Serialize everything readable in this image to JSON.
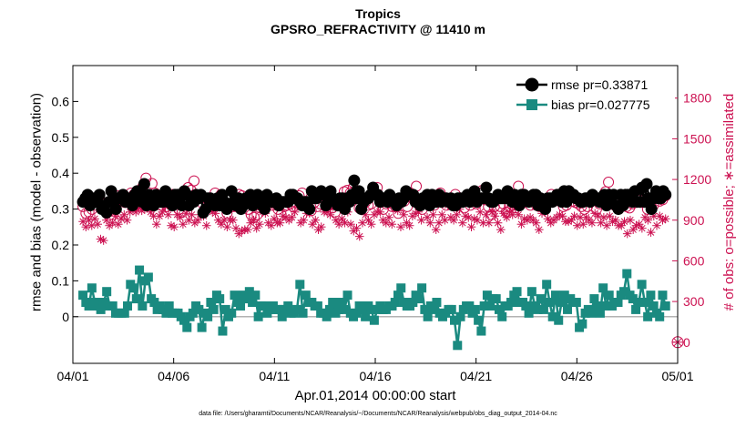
{
  "chart_data": {
    "type": "line",
    "title": "Tropics",
    "subtitle": "GPSRO_REFRACTIVITY @ 11410 m",
    "xlabel": "Apr.01,2014 00:00:00 start",
    "ylabel_left": "rmse and bias (model - observation)",
    "ylabel_right": "# of obs: o=possible; ∗=assimilated",
    "footnote": "data file: /Users/gharamti/Documents/NCAR/Reanalysis/~/Documents/NCAR/Reanalysis/webpub/obs_diag_output_2014-04.nc",
    "x_ticks": [
      "04/01",
      "04/06",
      "04/11",
      "04/16",
      "04/21",
      "04/26",
      "05/01"
    ],
    "x_range_days": [
      0,
      30
    ],
    "y_left_ticks": [
      "0",
      "0.1",
      "0.2",
      "0.3",
      "0.4",
      "0.5",
      "0.6"
    ],
    "y_left_range": [
      -0.13,
      0.7
    ],
    "y_right_ticks": [
      "0",
      "300",
      "600",
      "900",
      "1200",
      "1500",
      "1800"
    ],
    "y_right_range": [
      -156,
      2040
    ],
    "legend_position": "top-right",
    "colors": {
      "rmse": "#000000",
      "bias": "#1a8a80",
      "obs": "#cc1151",
      "zero": "#b3b3b3"
    },
    "series": [
      {
        "name": "rmse pr=0.33871",
        "key": "rmse",
        "marker": "filled-circle",
        "values": [
          0.32,
          0.33,
          0.34,
          0.31,
          0.33,
          0.32,
          0.33,
          0.34,
          0.3,
          0.31,
          0.29,
          0.32,
          0.35,
          0.32,
          0.3,
          0.33,
          0.33,
          0.34,
          0.32,
          0.33,
          0.32,
          0.31,
          0.34,
          0.35,
          0.33,
          0.32,
          0.37,
          0.31,
          0.34,
          0.33,
          0.31,
          0.34,
          0.33,
          0.32,
          0.32,
          0.35,
          0.32,
          0.33,
          0.31,
          0.34,
          0.34,
          0.33,
          0.31,
          0.35,
          0.34,
          0.31,
          0.32,
          0.32,
          0.34,
          0.33,
          0.34,
          0.29,
          0.3,
          0.33,
          0.33,
          0.32,
          0.31,
          0.33,
          0.31,
          0.34,
          0.32,
          0.3,
          0.31,
          0.35,
          0.32,
          0.31,
          0.33,
          0.3,
          0.31,
          0.33,
          0.32,
          0.34,
          0.31,
          0.33,
          0.34,
          0.33,
          0.31,
          0.3,
          0.34,
          0.33,
          0.32,
          0.32,
          0.33,
          0.31,
          0.32,
          0.32,
          0.32,
          0.32,
          0.34,
          0.34,
          0.33,
          0.33,
          0.32,
          0.31,
          0.32,
          0.32,
          0.3,
          0.35,
          0.33,
          0.33,
          0.34,
          0.35,
          0.34,
          0.31,
          0.33,
          0.35,
          0.33,
          0.32,
          0.31,
          0.33,
          0.33,
          0.3,
          0.33,
          0.32,
          0.34,
          0.38,
          0.33,
          0.35,
          0.3,
          0.32,
          0.33,
          0.33,
          0.34,
          0.36,
          0.34,
          0.34,
          0.32,
          0.33,
          0.33,
          0.32,
          0.34,
          0.33,
          0.32,
          0.31,
          0.33,
          0.32,
          0.33,
          0.35,
          0.34,
          0.34,
          0.34,
          0.32,
          0.32,
          0.31,
          0.33,
          0.32,
          0.34,
          0.31,
          0.34,
          0.32,
          0.32,
          0.34,
          0.32,
          0.33,
          0.33,
          0.32,
          0.33,
          0.31,
          0.31,
          0.33,
          0.33,
          0.32,
          0.33,
          0.34,
          0.32,
          0.33,
          0.35,
          0.32,
          0.33,
          0.33,
          0.33,
          0.36,
          0.33,
          0.32,
          0.32,
          0.33,
          0.34,
          0.33,
          0.33,
          0.33,
          0.35,
          0.34,
          0.32,
          0.34,
          0.33,
          0.31,
          0.34,
          0.34,
          0.33,
          0.32,
          0.33,
          0.34,
          0.34,
          0.31,
          0.33,
          0.31,
          0.3,
          0.33,
          0.33,
          0.32,
          0.33,
          0.34,
          0.33,
          0.32,
          0.35,
          0.32,
          0.35,
          0.34,
          0.34,
          0.33,
          0.33,
          0.32,
          0.32,
          0.33,
          0.33,
          0.32,
          0.34,
          0.33,
          0.33,
          0.32,
          0.32,
          0.34,
          0.31,
          0.34,
          0.32,
          0.34,
          0.31,
          0.3,
          0.34,
          0.31,
          0.34,
          0.34,
          0.33,
          0.32,
          0.35,
          0.32,
          0.32,
          0.36,
          0.32,
          0.37,
          0.33,
          0.3,
          0.33,
          0.35,
          0.33,
          0.33,
          0.35,
          0.34
        ]
      },
      {
        "name": "bias pr=0.027775",
        "key": "bias",
        "marker": "filled-square",
        "values": [
          0.06,
          0.04,
          0.03,
          0.08,
          0.04,
          0.03,
          0.02,
          0.04,
          0.07,
          0.03,
          0.03,
          0.01,
          0.01,
          0.01,
          0.01,
          0.03,
          0.09,
          0.08,
          0.05,
          0.13,
          0.03,
          0.1,
          0.11,
          0.05,
          0.04,
          0.02,
          0.03,
          0.02,
          0.01,
          0.03,
          0.01,
          0.01,
          0.01,
          0.0,
          -0.01,
          -0.03,
          0.0,
          0.01,
          0.03,
          0.02,
          -0.03,
          0.01,
          0.0,
          0.04,
          0.02,
          0.06,
          0.05,
          -0.04,
          0.02,
          0.0,
          0.01,
          0.06,
          0.04,
          0.03,
          0.06,
          0.05,
          0.07,
          0.04,
          0.06,
          0.0,
          0.03,
          0.03,
          0.01,
          0.02,
          0.03,
          0.02,
          0.02,
          0.0,
          0.02,
          0.03,
          0.01,
          0.01,
          0.02,
          0.09,
          0.01,
          0.06,
          0.04,
          0.04,
          0.03,
          0.03,
          0.01,
          0.01,
          0.0,
          0.02,
          0.04,
          0.01,
          0.02,
          0.04,
          0.02,
          0.06,
          0.01,
          0.0,
          0.01,
          0.03,
          0.02,
          0.0,
          0.03,
          0.02,
          -0.01,
          0.02,
          0.03,
          0.02,
          0.02,
          0.03,
          0.03,
          0.04,
          0.06,
          0.08,
          0.04,
          0.03,
          0.03,
          0.04,
          0.06,
          0.05,
          0.08,
          0.02,
          0.0,
          0.03,
          0.02,
          0.04,
          0.01,
          0.0,
          0.01,
          0.02,
          0.02,
          -0.01,
          -0.08,
          0.0,
          0.02,
          0.03,
          0.03,
          0.01,
          0.02,
          -0.01,
          -0.04,
          0.03,
          0.06,
          0.03,
          0.05,
          0.05,
          0.02,
          0.0,
          0.03,
          0.03,
          0.04,
          0.06,
          0.07,
          0.04,
          0.04,
          0.03,
          0.01,
          0.07,
          0.03,
          0.02,
          0.05,
          0.02,
          0.09,
          0.04,
          0.0,
          0.06,
          -0.01,
          0.04,
          0.06,
          0.02,
          0.05,
          0.04,
          0.04,
          -0.03,
          -0.02,
          0.01,
          0.02,
          0.01,
          0.05,
          0.03,
          0.01,
          0.08,
          0.03,
          0.06,
          0.03,
          0.04,
          0.04,
          0.06,
          0.07,
          0.12,
          0.06,
          0.05,
          0.02,
          0.04,
          0.09,
          0.04,
          0.0,
          0.06,
          0.03,
          0.01,
          0.0,
          0.06,
          0.03
        ]
      },
      {
        "name": "possible",
        "key": "obs_possible",
        "marker": "open-circle",
        "values": [
          1000,
          950,
          960,
          980,
          1010,
          1030,
          1040,
          1020,
          1000,
          970,
          940,
          990,
          1080,
          1050,
          1030,
          1060,
          1100,
          1090,
          1040,
          1020,
          1150,
          1210,
          1080,
          1170,
          1100,
          1060,
          1010,
          1050,
          1000,
          1020,
          1090,
          1080,
          980,
          960,
          1110,
          1140,
          1120,
          1190,
          1070,
          1080,
          1020,
          1060,
          1000,
          1040,
          1100,
          1050,
          1090,
          1000,
          950,
          1020,
          1000,
          1000,
          1090,
          1080,
          1040,
          980,
          940,
          920,
          940,
          990,
          1000,
          1070,
          1020,
          1010,
          1050,
          980,
          940,
          1000,
          1010,
          1020,
          1000,
          1030,
          1080,
          1100,
          1020,
          1000,
          970,
          1030,
          1000,
          1020,
          1080,
          1090,
          1010,
          990,
          960,
          1040,
          1050,
          1110,
          1120,
          1100,
          1140,
          1100,
          990,
          1050,
          1030,
          1010,
          1020,
          1090,
          1140,
          1030,
          980,
          1020,
          1060,
          1000,
          1000,
          950,
          1050,
          1040,
          1000,
          1100,
          1080,
          1150,
          1010,
          980,
          1050,
          1070,
          1050,
          1010,
          1040,
          1100,
          1060,
          1010,
          1040,
          1010,
          1090,
          1060,
          1040,
          990,
          1050,
          1010,
          1040,
          1020,
          1100,
          1120,
          1050,
          1000,
          940,
          1000,
          1060,
          1000,
          1020,
          960,
          1000,
          1010,
          990,
          1150,
          1020,
          1070,
          1060,
          1010,
          1080,
          1010,
          1000,
          1020,
          1050,
          1030,
          1090,
          1040,
          1060,
          1050,
          1000,
          1010,
          1060,
          1040,
          1030,
          1020,
          1000,
          980,
          1000,
          1060,
          1080,
          980,
          1020,
          1050,
          1110,
          1180,
          1040,
          1010,
          1020,
          1070,
          1050,
          1000,
          990,
          1020,
          1060,
          1070,
          1030,
          1050,
          980,
          1030,
          1010,
          1060,
          1040,
          1050,
          1080
        ]
      },
      {
        "name": "assimilated",
        "key": "obs_assimilated",
        "marker": "asterisk",
        "values": [
          890,
          850,
          900,
          860,
          910,
          870,
          760,
          750,
          900,
          860,
          880,
          930,
          870,
          910,
          940,
          900,
          960,
          980,
          960,
          990,
          970,
          980,
          1010,
          960,
          930,
          870,
          930,
          960,
          1000,
          940,
          860,
          850,
          940,
          920,
          870,
          950,
          900,
          940,
          880,
          900,
          940,
          930,
          860,
          980,
          960,
          950,
          900,
          870,
          900,
          850,
          900,
          900,
          840,
          800,
          820,
          830,
          830,
          880,
          900,
          840,
          870,
          960,
          950,
          880,
          860,
          910,
          880,
          880,
          930,
          920,
          900,
          920,
          960,
          1000,
          880,
          900,
          950,
          950,
          870,
          900,
          830,
          850,
          960,
          960,
          940,
          1000,
          900,
          870,
          910,
          880,
          960,
          870,
          820,
          840,
          780,
          880,
          940,
          900,
          870,
          940,
          960,
          960,
          900,
          880,
          920,
          870,
          990,
          970,
          850,
          940,
          880,
          860,
          930,
          950,
          960,
          900,
          1010,
          920,
          880,
          940,
          830,
          880,
          940,
          900,
          1010,
          920,
          900,
          940,
          980,
          880,
          930,
          920,
          850,
          910,
          900,
          960,
          880,
          940,
          880,
          960,
          930,
          880,
          830,
          950,
          920,
          960,
          940,
          990,
          940,
          870,
          910,
          900,
          920,
          900,
          880,
          830,
          950,
          960,
          910,
          880,
          900,
          920,
          940,
          930,
          890,
          890,
          900,
          930,
          860,
          920,
          870,
          920,
          900,
          880,
          950,
          930,
          880,
          920,
          860,
          930,
          890,
          900,
          860,
          860,
          890,
          800,
          900,
          830,
          860,
          870,
          840,
          920,
          900,
          810,
          930,
          860,
          930,
          900,
          910
        ]
      }
    ],
    "right_edge_marker": {
      "value": 0,
      "symbol": "circle-plus"
    }
  }
}
